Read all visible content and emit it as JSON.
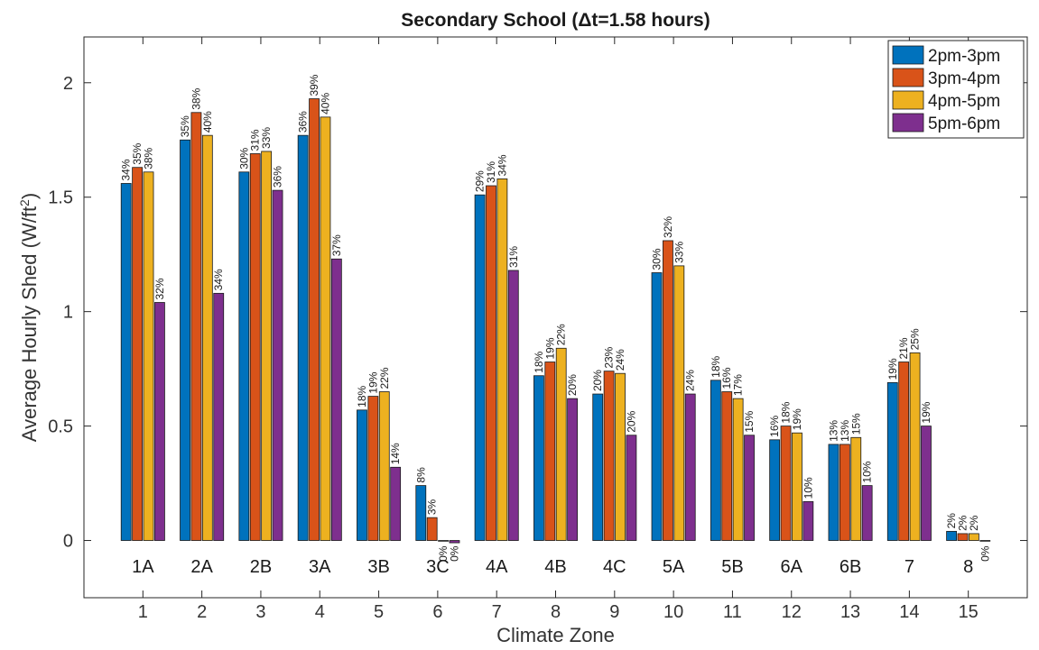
{
  "chart_data": {
    "type": "bar",
    "title": "Secondary School (Δt=1.58 hours)",
    "xlabel": "Climate Zone",
    "ylabel": "Average Hourly Shed (W/ft²)",
    "ylabel_main": "Average Hourly Shed (W/ft",
    "ylabel_sup": "2",
    "ylabel_end": ")",
    "ylim": [
      -0.25,
      2.2
    ],
    "yticks": [
      0,
      0.5,
      1,
      1.5,
      2
    ],
    "ytick_labels": [
      "0",
      "0.5",
      "1",
      "1.5",
      "2"
    ],
    "categories": [
      "1",
      "2",
      "3",
      "4",
      "5",
      "6",
      "7",
      "8",
      "9",
      "10",
      "11",
      "12",
      "13",
      "14",
      "15"
    ],
    "zone_labels": [
      "1A",
      "2A",
      "2B",
      "3A",
      "3B",
      "3C",
      "4A",
      "4B",
      "4C",
      "5A",
      "5B",
      "6A",
      "6B",
      "7",
      "8"
    ],
    "legend_position": "top-right",
    "grid": false,
    "series": [
      {
        "name": "2pm-3pm",
        "color": "#0072BD",
        "values": [
          1.56,
          1.75,
          1.61,
          1.77,
          0.57,
          0.24,
          1.51,
          0.72,
          0.64,
          1.17,
          0.7,
          0.44,
          0.42,
          0.69,
          0.04
        ],
        "labels": [
          "34%",
          "35%",
          "30%",
          "36%",
          "18%",
          "8%",
          "29%",
          "18%",
          "20%",
          "30%",
          "18%",
          "16%",
          "13%",
          "19%",
          "2%"
        ]
      },
      {
        "name": "3pm-4pm",
        "color": "#D95319",
        "values": [
          1.63,
          1.87,
          1.69,
          1.93,
          0.63,
          0.1,
          1.55,
          0.78,
          0.74,
          1.31,
          0.65,
          0.5,
          0.42,
          0.78,
          0.03
        ],
        "labels": [
          "35%",
          "38%",
          "31%",
          "39%",
          "19%",
          "3%",
          "31%",
          "19%",
          "23%",
          "32%",
          "16%",
          "18%",
          "13%",
          "21%",
          "2%"
        ]
      },
      {
        "name": "4pm-5pm",
        "color": "#EDB120",
        "values": [
          1.61,
          1.77,
          1.7,
          1.85,
          0.65,
          0.0,
          1.58,
          0.84,
          0.73,
          1.2,
          0.62,
          0.47,
          0.45,
          0.82,
          0.03
        ],
        "labels": [
          "38%",
          "40%",
          "33%",
          "40%",
          "22%",
          "0%",
          "34%",
          "22%",
          "24%",
          "33%",
          "17%",
          "19%",
          "15%",
          "25%",
          "2%"
        ]
      },
      {
        "name": "5pm-6pm",
        "color": "#7E2F8E",
        "values": [
          1.04,
          1.08,
          1.53,
          1.23,
          0.32,
          -0.01,
          1.18,
          0.62,
          0.46,
          0.64,
          0.46,
          0.17,
          0.24,
          0.5,
          0.0
        ],
        "labels": [
          "32%",
          "34%",
          "36%",
          "37%",
          "14%",
          "0%",
          "31%",
          "20%",
          "20%",
          "24%",
          "15%",
          "10%",
          "10%",
          "19%",
          "0%"
        ]
      }
    ]
  }
}
